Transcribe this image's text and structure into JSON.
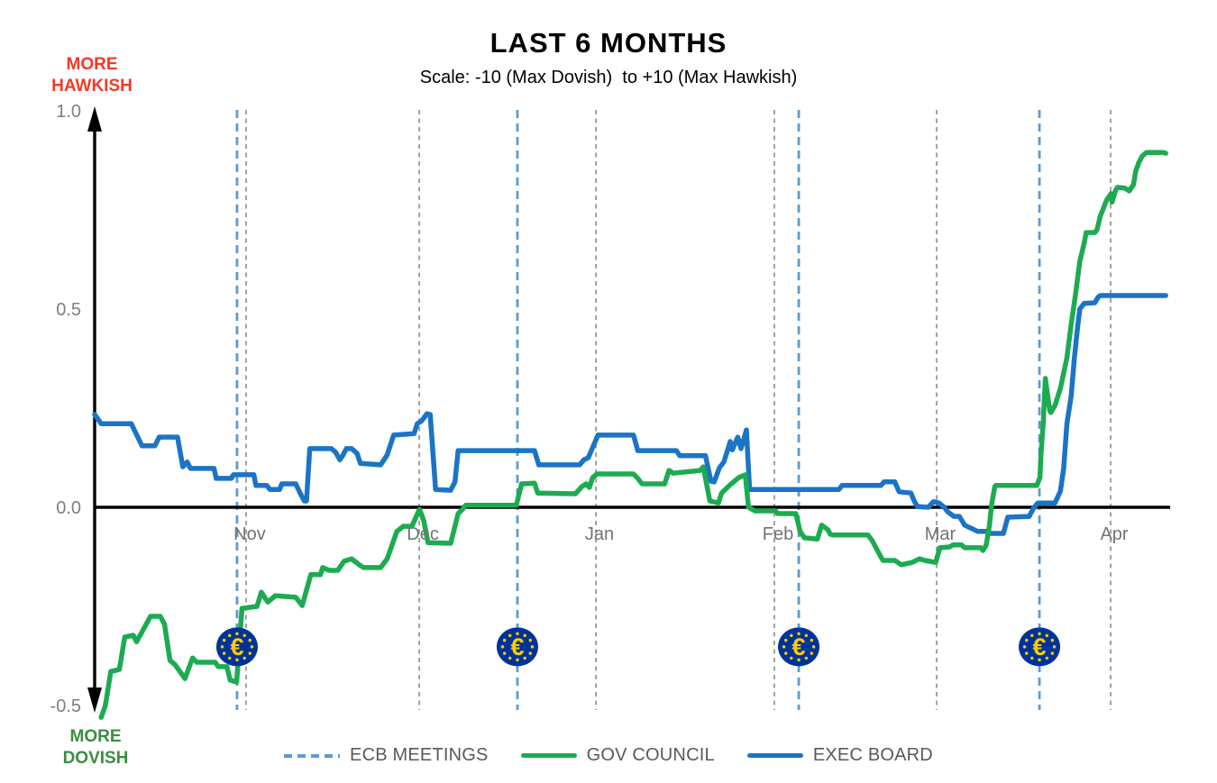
{
  "header": {
    "title": "LAST 6 MONTHS",
    "subtitle": "Scale: -10 (Max Dovish)  to +10 (Max Hawkish)"
  },
  "axis_annotations": {
    "more_hawkish": "MORE\nHAWKISH",
    "more_dovish": "MORE\nDOVISH",
    "hawkish_color": "#f23a28",
    "dovish_color": "#3c8c40"
  },
  "legend": {
    "items": [
      {
        "label": "ECB MEETINGS",
        "style": "dashed",
        "color": "#5b9bd5"
      },
      {
        "label": "GOV COUNCIL",
        "style": "solid",
        "color": "#1cab50"
      },
      {
        "label": "EXEC BOARD",
        "style": "solid",
        "color": "#1b74c5"
      }
    ]
  },
  "chart_data": {
    "type": "line",
    "title": "LAST 6 MONTHS",
    "subtitle": "Scale: -10 (Max Dovish) to +10 (Max Hawkish)",
    "ylim": [
      -0.5,
      1.0
    ],
    "yticks": [
      {
        "value": 1.0,
        "label": "1.0"
      },
      {
        "value": 0.5,
        "label": "0.5"
      },
      {
        "value": 0.0,
        "label": "0.0"
      },
      {
        "value": -0.5,
        "label": "-0.5"
      }
    ],
    "zero_line": true,
    "grid": "vertical-dashed-month-lines",
    "legend_position": "bottom-center",
    "x_unit": "percent of 6-month window (mid-Oct to mid-Apr)",
    "month_gridlines": [
      {
        "label": "Nov",
        "t": 14.08
      },
      {
        "label": "Dec",
        "t": 30.18
      },
      {
        "label": "Jan",
        "t": 46.61
      },
      {
        "label": "Feb",
        "t": 63.2
      },
      {
        "label": "Mar",
        "t": 78.29
      },
      {
        "label": "Apr",
        "t": 94.47
      }
    ],
    "ecb_meetings": {
      "t": [
        13.24,
        39.31,
        65.47,
        87.85
      ],
      "line_color": "#5b9bd5",
      "icon": "euro-ecb-logo",
      "icon_value": -0.352,
      "icon_colors": {
        "circle": "#003399",
        "symbol": "#ffcc00"
      }
    },
    "series": [
      {
        "name": "EXEC BOARD",
        "color": "#1b74c5",
        "points": [
          [
            0.0,
            0.234
          ],
          [
            0.6,
            0.211
          ],
          [
            3.4,
            0.211
          ],
          [
            4.4,
            0.155
          ],
          [
            5.6,
            0.155
          ],
          [
            6.0,
            0.177
          ],
          [
            7.7,
            0.177
          ],
          [
            8.2,
            0.102
          ],
          [
            8.6,
            0.114
          ],
          [
            8.9,
            0.098
          ],
          [
            11.1,
            0.098
          ],
          [
            11.3,
            0.073
          ],
          [
            12.7,
            0.073
          ],
          [
            12.9,
            0.082
          ],
          [
            14.8,
            0.082
          ],
          [
            15.0,
            0.055
          ],
          [
            16.0,
            0.055
          ],
          [
            16.3,
            0.045
          ],
          [
            17.2,
            0.045
          ],
          [
            17.4,
            0.059
          ],
          [
            18.7,
            0.059
          ],
          [
            19.1,
            0.036
          ],
          [
            19.5,
            0.016
          ],
          [
            19.7,
            0.016
          ],
          [
            20.0,
            0.148
          ],
          [
            22.0,
            0.148
          ],
          [
            22.4,
            0.139
          ],
          [
            22.8,
            0.12
          ],
          [
            23.1,
            0.132
          ],
          [
            23.4,
            0.148
          ],
          [
            23.9,
            0.148
          ],
          [
            24.4,
            0.136
          ],
          [
            24.7,
            0.111
          ],
          [
            26.6,
            0.107
          ],
          [
            27.2,
            0.132
          ],
          [
            27.8,
            0.182
          ],
          [
            29.7,
            0.186
          ],
          [
            30.0,
            0.211
          ],
          [
            30.4,
            0.218
          ],
          [
            30.9,
            0.236
          ],
          [
            31.2,
            0.234
          ],
          [
            31.7,
            0.045
          ],
          [
            33.1,
            0.043
          ],
          [
            33.5,
            0.064
          ],
          [
            33.8,
            0.143
          ],
          [
            40.9,
            0.143
          ],
          [
            41.3,
            0.107
          ],
          [
            45.1,
            0.107
          ],
          [
            45.5,
            0.12
          ],
          [
            45.9,
            0.125
          ],
          [
            46.8,
            0.182
          ],
          [
            50.1,
            0.182
          ],
          [
            50.5,
            0.143
          ],
          [
            54.1,
            0.143
          ],
          [
            54.4,
            0.13
          ],
          [
            56.8,
            0.13
          ],
          [
            57.3,
            0.066
          ],
          [
            57.6,
            0.064
          ],
          [
            58.1,
            0.1
          ],
          [
            58.5,
            0.114
          ],
          [
            59.1,
            0.166
          ],
          [
            59.3,
            0.145
          ],
          [
            59.8,
            0.177
          ],
          [
            60.1,
            0.148
          ],
          [
            60.6,
            0.195
          ],
          [
            60.9,
            0.045
          ],
          [
            69.2,
            0.045
          ],
          [
            69.5,
            0.055
          ],
          [
            73.1,
            0.055
          ],
          [
            73.4,
            0.064
          ],
          [
            74.4,
            0.064
          ],
          [
            74.8,
            0.039
          ],
          [
            75.9,
            0.036
          ],
          [
            76.2,
            0.016
          ],
          [
            76.5,
            0.002
          ],
          [
            77.5,
            0.0
          ],
          [
            78.0,
            0.014
          ],
          [
            78.5,
            0.011
          ],
          [
            79.0,
            0.0
          ],
          [
            79.3,
            -0.011
          ],
          [
            79.9,
            -0.023
          ],
          [
            80.4,
            -0.023
          ],
          [
            80.9,
            -0.045
          ],
          [
            82.1,
            -0.061
          ],
          [
            82.9,
            -0.061
          ],
          [
            83.2,
            -0.066
          ],
          [
            84.5,
            -0.066
          ],
          [
            84.9,
            -0.025
          ],
          [
            86.9,
            -0.023
          ],
          [
            87.3,
            -0.002
          ],
          [
            87.7,
            0.011
          ],
          [
            89.3,
            0.011
          ],
          [
            89.8,
            0.041
          ],
          [
            90.1,
            0.098
          ],
          [
            90.4,
            0.211
          ],
          [
            90.8,
            0.28
          ],
          [
            91.1,
            0.377
          ],
          [
            91.4,
            0.455
          ],
          [
            91.6,
            0.5
          ],
          [
            92.0,
            0.514
          ],
          [
            93.0,
            0.516
          ],
          [
            93.3,
            0.53
          ],
          [
            93.5,
            0.534
          ],
          [
            99.6,
            0.534
          ]
        ]
      },
      {
        "name": "GOV COUNCIL",
        "color": "#1cab50",
        "points": [
          [
            0.6,
            -0.53
          ],
          [
            1.0,
            -0.5
          ],
          [
            1.5,
            -0.414
          ],
          [
            2.3,
            -0.409
          ],
          [
            2.8,
            -0.327
          ],
          [
            3.6,
            -0.323
          ],
          [
            3.9,
            -0.339
          ],
          [
            5.2,
            -0.275
          ],
          [
            6.1,
            -0.275
          ],
          [
            6.5,
            -0.295
          ],
          [
            7.0,
            -0.386
          ],
          [
            7.5,
            -0.398
          ],
          [
            8.4,
            -0.432
          ],
          [
            9.1,
            -0.38
          ],
          [
            9.5,
            -0.391
          ],
          [
            11.2,
            -0.391
          ],
          [
            11.5,
            -0.402
          ],
          [
            12.3,
            -0.402
          ],
          [
            12.6,
            -0.436
          ],
          [
            13.2,
            -0.441
          ],
          [
            13.7,
            -0.255
          ],
          [
            15.1,
            -0.25
          ],
          [
            15.5,
            -0.214
          ],
          [
            16.1,
            -0.239
          ],
          [
            16.8,
            -0.223
          ],
          [
            18.7,
            -0.227
          ],
          [
            19.3,
            -0.248
          ],
          [
            20.1,
            -0.17
          ],
          [
            21.0,
            -0.17
          ],
          [
            21.2,
            -0.152
          ],
          [
            21.8,
            -0.159
          ],
          [
            22.6,
            -0.159
          ],
          [
            23.2,
            -0.136
          ],
          [
            23.9,
            -0.13
          ],
          [
            24.6,
            -0.145
          ],
          [
            25.0,
            -0.152
          ],
          [
            26.6,
            -0.152
          ],
          [
            27.2,
            -0.13
          ],
          [
            28.1,
            -0.061
          ],
          [
            28.7,
            -0.048
          ],
          [
            29.5,
            -0.048
          ],
          [
            30.2,
            -0.005
          ],
          [
            30.6,
            -0.034
          ],
          [
            31.0,
            -0.089
          ],
          [
            33.1,
            -0.091
          ],
          [
            33.8,
            -0.016
          ],
          [
            34.2,
            -0.005
          ],
          [
            34.5,
            0.005
          ],
          [
            39.2,
            0.005
          ],
          [
            39.7,
            0.059
          ],
          [
            40.9,
            0.061
          ],
          [
            41.2,
            0.036
          ],
          [
            44.7,
            0.034
          ],
          [
            45.3,
            0.052
          ],
          [
            45.7,
            0.059
          ],
          [
            46.0,
            0.05
          ],
          [
            46.3,
            0.075
          ],
          [
            46.7,
            0.084
          ],
          [
            50.1,
            0.084
          ],
          [
            50.5,
            0.073
          ],
          [
            50.9,
            0.059
          ],
          [
            53.0,
            0.059
          ],
          [
            53.4,
            0.093
          ],
          [
            53.8,
            0.086
          ],
          [
            56.3,
            0.093
          ],
          [
            56.6,
            0.102
          ],
          [
            57.2,
            0.016
          ],
          [
            58.0,
            0.011
          ],
          [
            58.3,
            0.036
          ],
          [
            59.1,
            0.057
          ],
          [
            59.9,
            0.075
          ],
          [
            60.5,
            0.082
          ],
          [
            60.8,
            0.0
          ],
          [
            61.4,
            -0.009
          ],
          [
            63.3,
            -0.009
          ],
          [
            63.5,
            -0.016
          ],
          [
            65.2,
            -0.016
          ],
          [
            65.6,
            -0.061
          ],
          [
            66.0,
            -0.077
          ],
          [
            67.2,
            -0.08
          ],
          [
            67.6,
            -0.045
          ],
          [
            68.2,
            -0.057
          ],
          [
            68.4,
            -0.068
          ],
          [
            68.7,
            -0.07
          ],
          [
            71.9,
            -0.07
          ],
          [
            72.3,
            -0.084
          ],
          [
            73.1,
            -0.125
          ],
          [
            73.3,
            -0.134
          ],
          [
            74.4,
            -0.134
          ],
          [
            75.0,
            -0.145
          ],
          [
            76.0,
            -0.139
          ],
          [
            76.7,
            -0.13
          ],
          [
            77.2,
            -0.134
          ],
          [
            78.2,
            -0.139
          ],
          [
            78.6,
            -0.102
          ],
          [
            79.5,
            -0.1
          ],
          [
            79.8,
            -0.095
          ],
          [
            80.6,
            -0.095
          ],
          [
            80.9,
            -0.102
          ],
          [
            82.4,
            -0.102
          ],
          [
            82.6,
            -0.109
          ],
          [
            82.9,
            -0.095
          ],
          [
            83.2,
            -0.045
          ],
          [
            83.4,
            0.007
          ],
          [
            83.7,
            0.052
          ],
          [
            83.8,
            0.055
          ],
          [
            87.6,
            0.055
          ],
          [
            87.9,
            0.075
          ],
          [
            88.0,
            0.136
          ],
          [
            88.2,
            0.211
          ],
          [
            88.4,
            0.325
          ],
          [
            88.8,
            0.245
          ],
          [
            88.9,
            0.239
          ],
          [
            89.3,
            0.257
          ],
          [
            89.8,
            0.3
          ],
          [
            90.4,
            0.377
          ],
          [
            90.8,
            0.461
          ],
          [
            91.2,
            0.536
          ],
          [
            91.6,
            0.62
          ],
          [
            92.0,
            0.666
          ],
          [
            92.2,
            0.693
          ],
          [
            93.0,
            0.693
          ],
          [
            93.2,
            0.7
          ],
          [
            93.5,
            0.734
          ],
          [
            94.1,
            0.775
          ],
          [
            94.5,
            0.791
          ],
          [
            94.6,
            0.77
          ],
          [
            94.9,
            0.798
          ],
          [
            95.1,
            0.807
          ],
          [
            95.8,
            0.805
          ],
          [
            96.2,
            0.798
          ],
          [
            96.6,
            0.814
          ],
          [
            96.8,
            0.848
          ],
          [
            97.1,
            0.87
          ],
          [
            97.4,
            0.886
          ],
          [
            97.8,
            0.895
          ],
          [
            99.3,
            0.895
          ],
          [
            99.6,
            0.893
          ]
        ]
      }
    ],
    "axis_colors": {
      "zero_line": "#000000",
      "month_gridline": "#8c8c8c",
      "tick_text": "#7f7f7f"
    }
  }
}
